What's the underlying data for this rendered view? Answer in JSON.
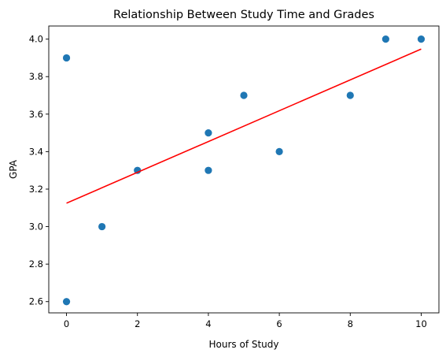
{
  "chart_data": {
    "type": "scatter",
    "title": "Relationship Between Study Time and Grades",
    "xlabel": "Hours of Study",
    "ylabel": "GPA",
    "xlim": [
      -0.5,
      10.5
    ],
    "ylim": [
      2.54,
      4.07
    ],
    "xticks": [
      0,
      2,
      4,
      6,
      8,
      10
    ],
    "yticks": [
      2.6,
      2.8,
      3.0,
      3.2,
      3.4,
      3.6,
      3.8,
      4.0
    ],
    "grid": false,
    "series": [
      {
        "kind": "scatter",
        "color": "#1f77b4",
        "points": [
          {
            "x": 0,
            "y": 3.9
          },
          {
            "x": 0,
            "y": 2.6
          },
          {
            "x": 1,
            "y": 3.0
          },
          {
            "x": 2,
            "y": 3.3
          },
          {
            "x": 4,
            "y": 3.5
          },
          {
            "x": 4,
            "y": 3.3
          },
          {
            "x": 5,
            "y": 3.7
          },
          {
            "x": 6,
            "y": 3.4
          },
          {
            "x": 8,
            "y": 3.7
          },
          {
            "x": 9,
            "y": 4.0
          },
          {
            "x": 10,
            "y": 4.0
          }
        ]
      },
      {
        "kind": "line",
        "color": "#ff0000",
        "points": [
          {
            "x": 0,
            "y": 3.125
          },
          {
            "x": 10,
            "y": 3.947
          }
        ]
      }
    ]
  }
}
